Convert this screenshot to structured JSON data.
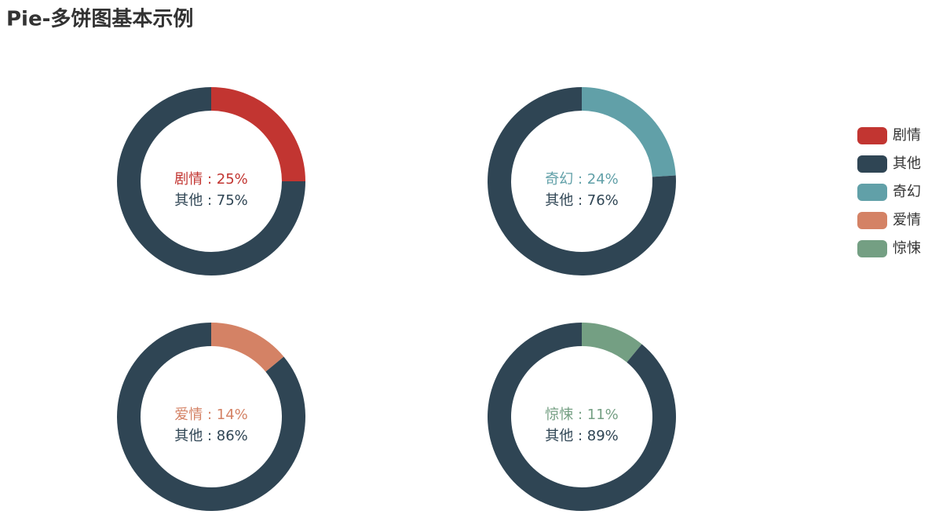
{
  "title": "Pie-多饼图基本示例",
  "chart_data": [
    {
      "type": "pie",
      "categories": [
        "剧情",
        "其他"
      ],
      "values": [
        25,
        75
      ],
      "value_labels": [
        "剧情 : 25%",
        "其他 : 75%"
      ],
      "colors": [
        "#c23531",
        "#2f4554"
      ]
    },
    {
      "type": "pie",
      "categories": [
        "奇幻",
        "其他"
      ],
      "values": [
        24,
        76
      ],
      "value_labels": [
        "奇幻 : 24%",
        "其他 : 76%"
      ],
      "colors": [
        "#61a0a8",
        "#2f4554"
      ]
    },
    {
      "type": "pie",
      "categories": [
        "爱情",
        "其他"
      ],
      "values": [
        14,
        86
      ],
      "value_labels": [
        "爱情 : 14%",
        "其他 : 86%"
      ],
      "colors": [
        "#d48265",
        "#2f4554"
      ]
    },
    {
      "type": "pie",
      "categories": [
        "惊悚",
        "其他"
      ],
      "values": [
        11,
        89
      ],
      "value_labels": [
        "惊悚 : 11%",
        "其他 : 89%"
      ],
      "colors": [
        "#749f83",
        "#2f4554"
      ]
    }
  ]
}
